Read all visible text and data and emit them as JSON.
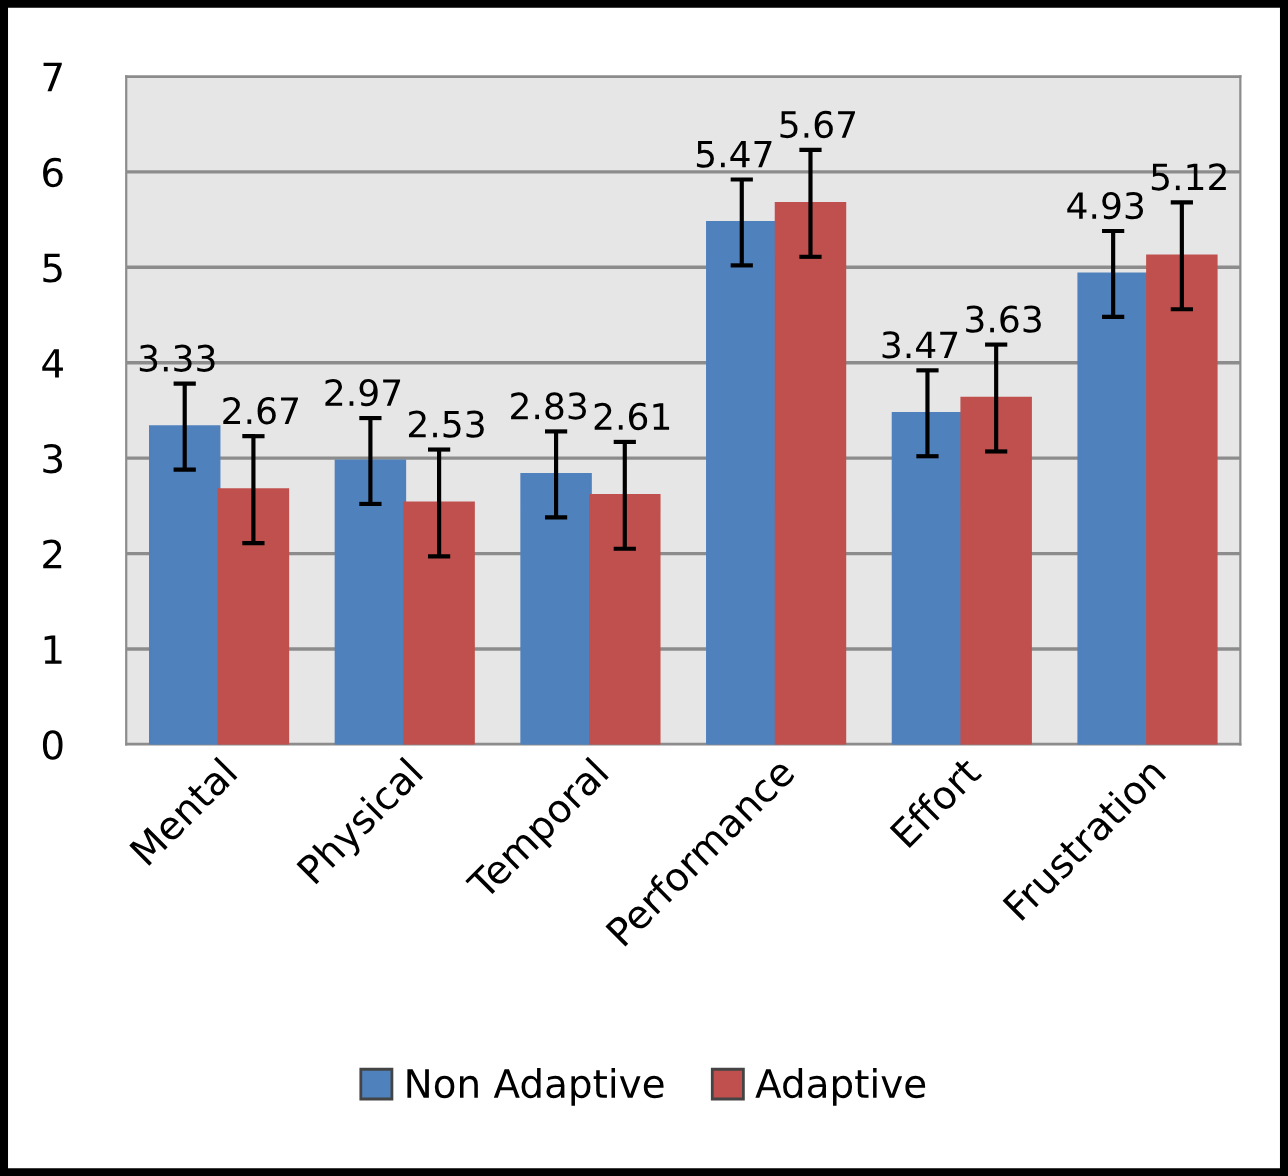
{
  "chart_data": {
    "type": "bar",
    "categories": [
      "Mental",
      "Physical",
      "Temporal",
      "Performance",
      "Effort",
      "Frustration"
    ],
    "series": [
      {
        "name": "Non Adaptive",
        "color": "#4f81bd",
        "values": [
          3.33,
          2.97,
          2.83,
          5.47,
          3.47,
          4.93
        ],
        "errors": [
          0.45,
          0.45,
          0.45,
          0.45,
          0.45,
          0.45
        ]
      },
      {
        "name": "Adaptive",
        "color": "#c0504d",
        "values": [
          2.67,
          2.53,
          2.61,
          5.67,
          3.63,
          5.12
        ],
        "errors": [
          0.56,
          0.56,
          0.56,
          0.56,
          0.56,
          0.56
        ]
      }
    ],
    "ylim": [
      0,
      7
    ],
    "yticks": [
      0,
      1,
      2,
      3,
      4,
      5,
      6,
      7
    ],
    "grid": "y",
    "legend": "bottom",
    "data_labels": true
  }
}
